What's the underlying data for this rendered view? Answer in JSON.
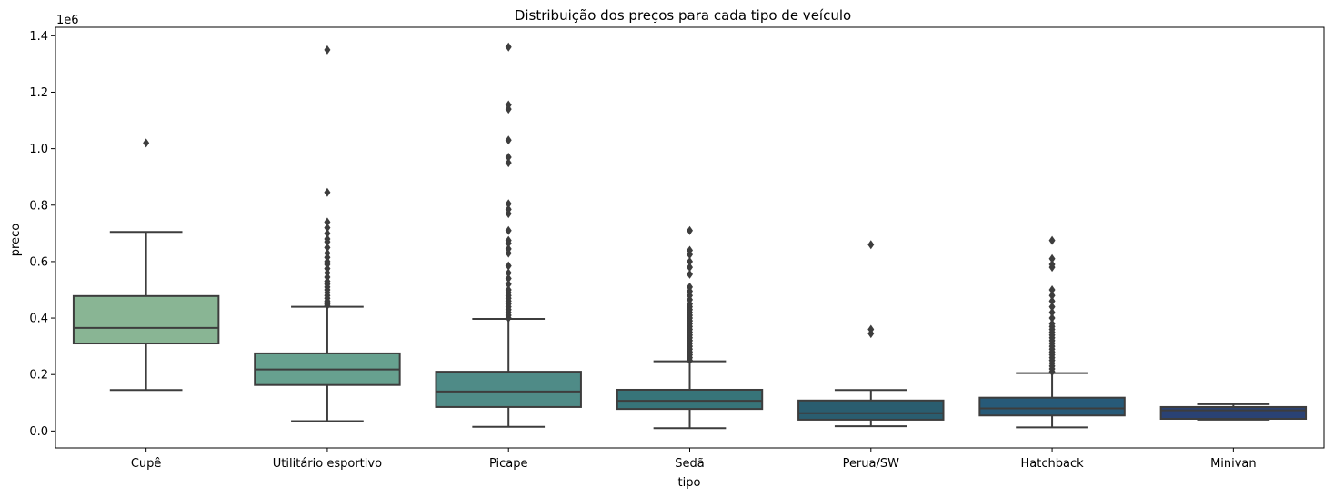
{
  "chart_data": {
    "type": "box",
    "title": "Distribuição dos preços para cada tipo de veículo",
    "xlabel": "tipo",
    "ylabel": "preco",
    "y_multiplier_label": "1e6",
    "ylim": [
      -0.06,
      1.43
    ],
    "yticks": [
      0.0,
      0.2,
      0.4,
      0.6,
      0.8,
      1.0,
      1.2,
      1.4
    ],
    "ytick_labels": [
      "0.0",
      "0.2",
      "0.4",
      "0.6",
      "0.8",
      "1.0",
      "1.2",
      "1.4"
    ],
    "grid": false,
    "categories": [
      "Cupê",
      "Utilitário esportivo",
      "Picape",
      "Sedã",
      "Perua/SW",
      "Hatchback",
      "Minivan"
    ],
    "boxes": [
      {
        "color": "#89b594",
        "whisker_low": 0.145,
        "q1": 0.31,
        "median": 0.365,
        "q3": 0.478,
        "whisker_high": 0.705,
        "outliers": [
          1.02
        ]
      },
      {
        "color": "#67a18f",
        "whisker_low": 0.035,
        "q1": 0.163,
        "median": 0.218,
        "q3": 0.275,
        "whisker_high": 0.44,
        "outliers": [
          0.445,
          0.45,
          0.455,
          0.46,
          0.47,
          0.48,
          0.49,
          0.5,
          0.51,
          0.52,
          0.53,
          0.545,
          0.56,
          0.575,
          0.59,
          0.6,
          0.615,
          0.63,
          0.65,
          0.67,
          0.68,
          0.7,
          0.72,
          0.74,
          0.845,
          1.35
        ]
      },
      {
        "color": "#4f8b87",
        "whisker_low": 0.015,
        "q1": 0.085,
        "median": 0.14,
        "q3": 0.21,
        "whisker_high": 0.397,
        "outliers": [
          0.4,
          0.41,
          0.42,
          0.43,
          0.44,
          0.45,
          0.46,
          0.47,
          0.48,
          0.49,
          0.5,
          0.52,
          0.54,
          0.56,
          0.585,
          0.63,
          0.645,
          0.665,
          0.675,
          0.71,
          0.77,
          0.785,
          0.805,
          0.95,
          0.97,
          1.03,
          1.14,
          1.155,
          1.36
        ]
      },
      {
        "color": "#377479",
        "whisker_low": 0.01,
        "q1": 0.078,
        "median": 0.107,
        "q3": 0.146,
        "whisker_high": 0.247,
        "outliers": [
          0.25,
          0.26,
          0.27,
          0.28,
          0.29,
          0.3,
          0.31,
          0.32,
          0.33,
          0.34,
          0.35,
          0.36,
          0.37,
          0.38,
          0.39,
          0.4,
          0.41,
          0.42,
          0.43,
          0.44,
          0.45,
          0.465,
          0.48,
          0.495,
          0.51,
          0.555,
          0.58,
          0.6,
          0.625,
          0.64,
          0.71
        ]
      },
      {
        "color": "#2a5d6f",
        "whisker_low": 0.017,
        "q1": 0.04,
        "median": 0.063,
        "q3": 0.108,
        "whisker_high": 0.145,
        "outliers": [
          0.345,
          0.36,
          0.66
        ]
      },
      {
        "color": "#275a78",
        "whisker_low": 0.013,
        "q1": 0.055,
        "median": 0.08,
        "q3": 0.118,
        "whisker_high": 0.205,
        "outliers": [
          0.21,
          0.22,
          0.23,
          0.24,
          0.25,
          0.26,
          0.27,
          0.28,
          0.29,
          0.3,
          0.31,
          0.32,
          0.33,
          0.34,
          0.35,
          0.36,
          0.37,
          0.38,
          0.4,
          0.42,
          0.44,
          0.46,
          0.48,
          0.5,
          0.58,
          0.59,
          0.61,
          0.675
        ]
      },
      {
        "color": "#2a4274",
        "whisker_low": 0.04,
        "q1": 0.043,
        "median": 0.073,
        "q3": 0.085,
        "whisker_high": 0.095,
        "outliers": []
      }
    ]
  }
}
